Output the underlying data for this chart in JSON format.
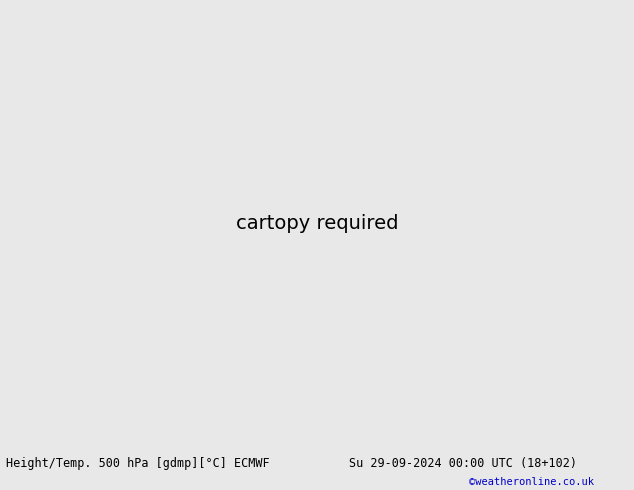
{
  "title_left": "Height/Temp. 500 hPa [gdmp][°C] ECMWF",
  "title_right": "Su 29-09-2024 00:00 UTC (18+102)",
  "credit": "©weatheronline.co.uk",
  "bg_color": "#e8e8e8",
  "land_color": "#c8e6a0",
  "sea_color": "#c8c8c8",
  "border_color": "#888888",
  "fig_width": 6.34,
  "fig_height": 4.9,
  "dpi": 100,
  "bottom_bar_color": "#e8e8e8",
  "title_fontsize": 8.5,
  "credit_fontsize": 7.5,
  "credit_color": "#0000cc",
  "map_extent": [
    90,
    160,
    0,
    55
  ],
  "black_lw": 1.5,
  "color_lw": 1.6
}
